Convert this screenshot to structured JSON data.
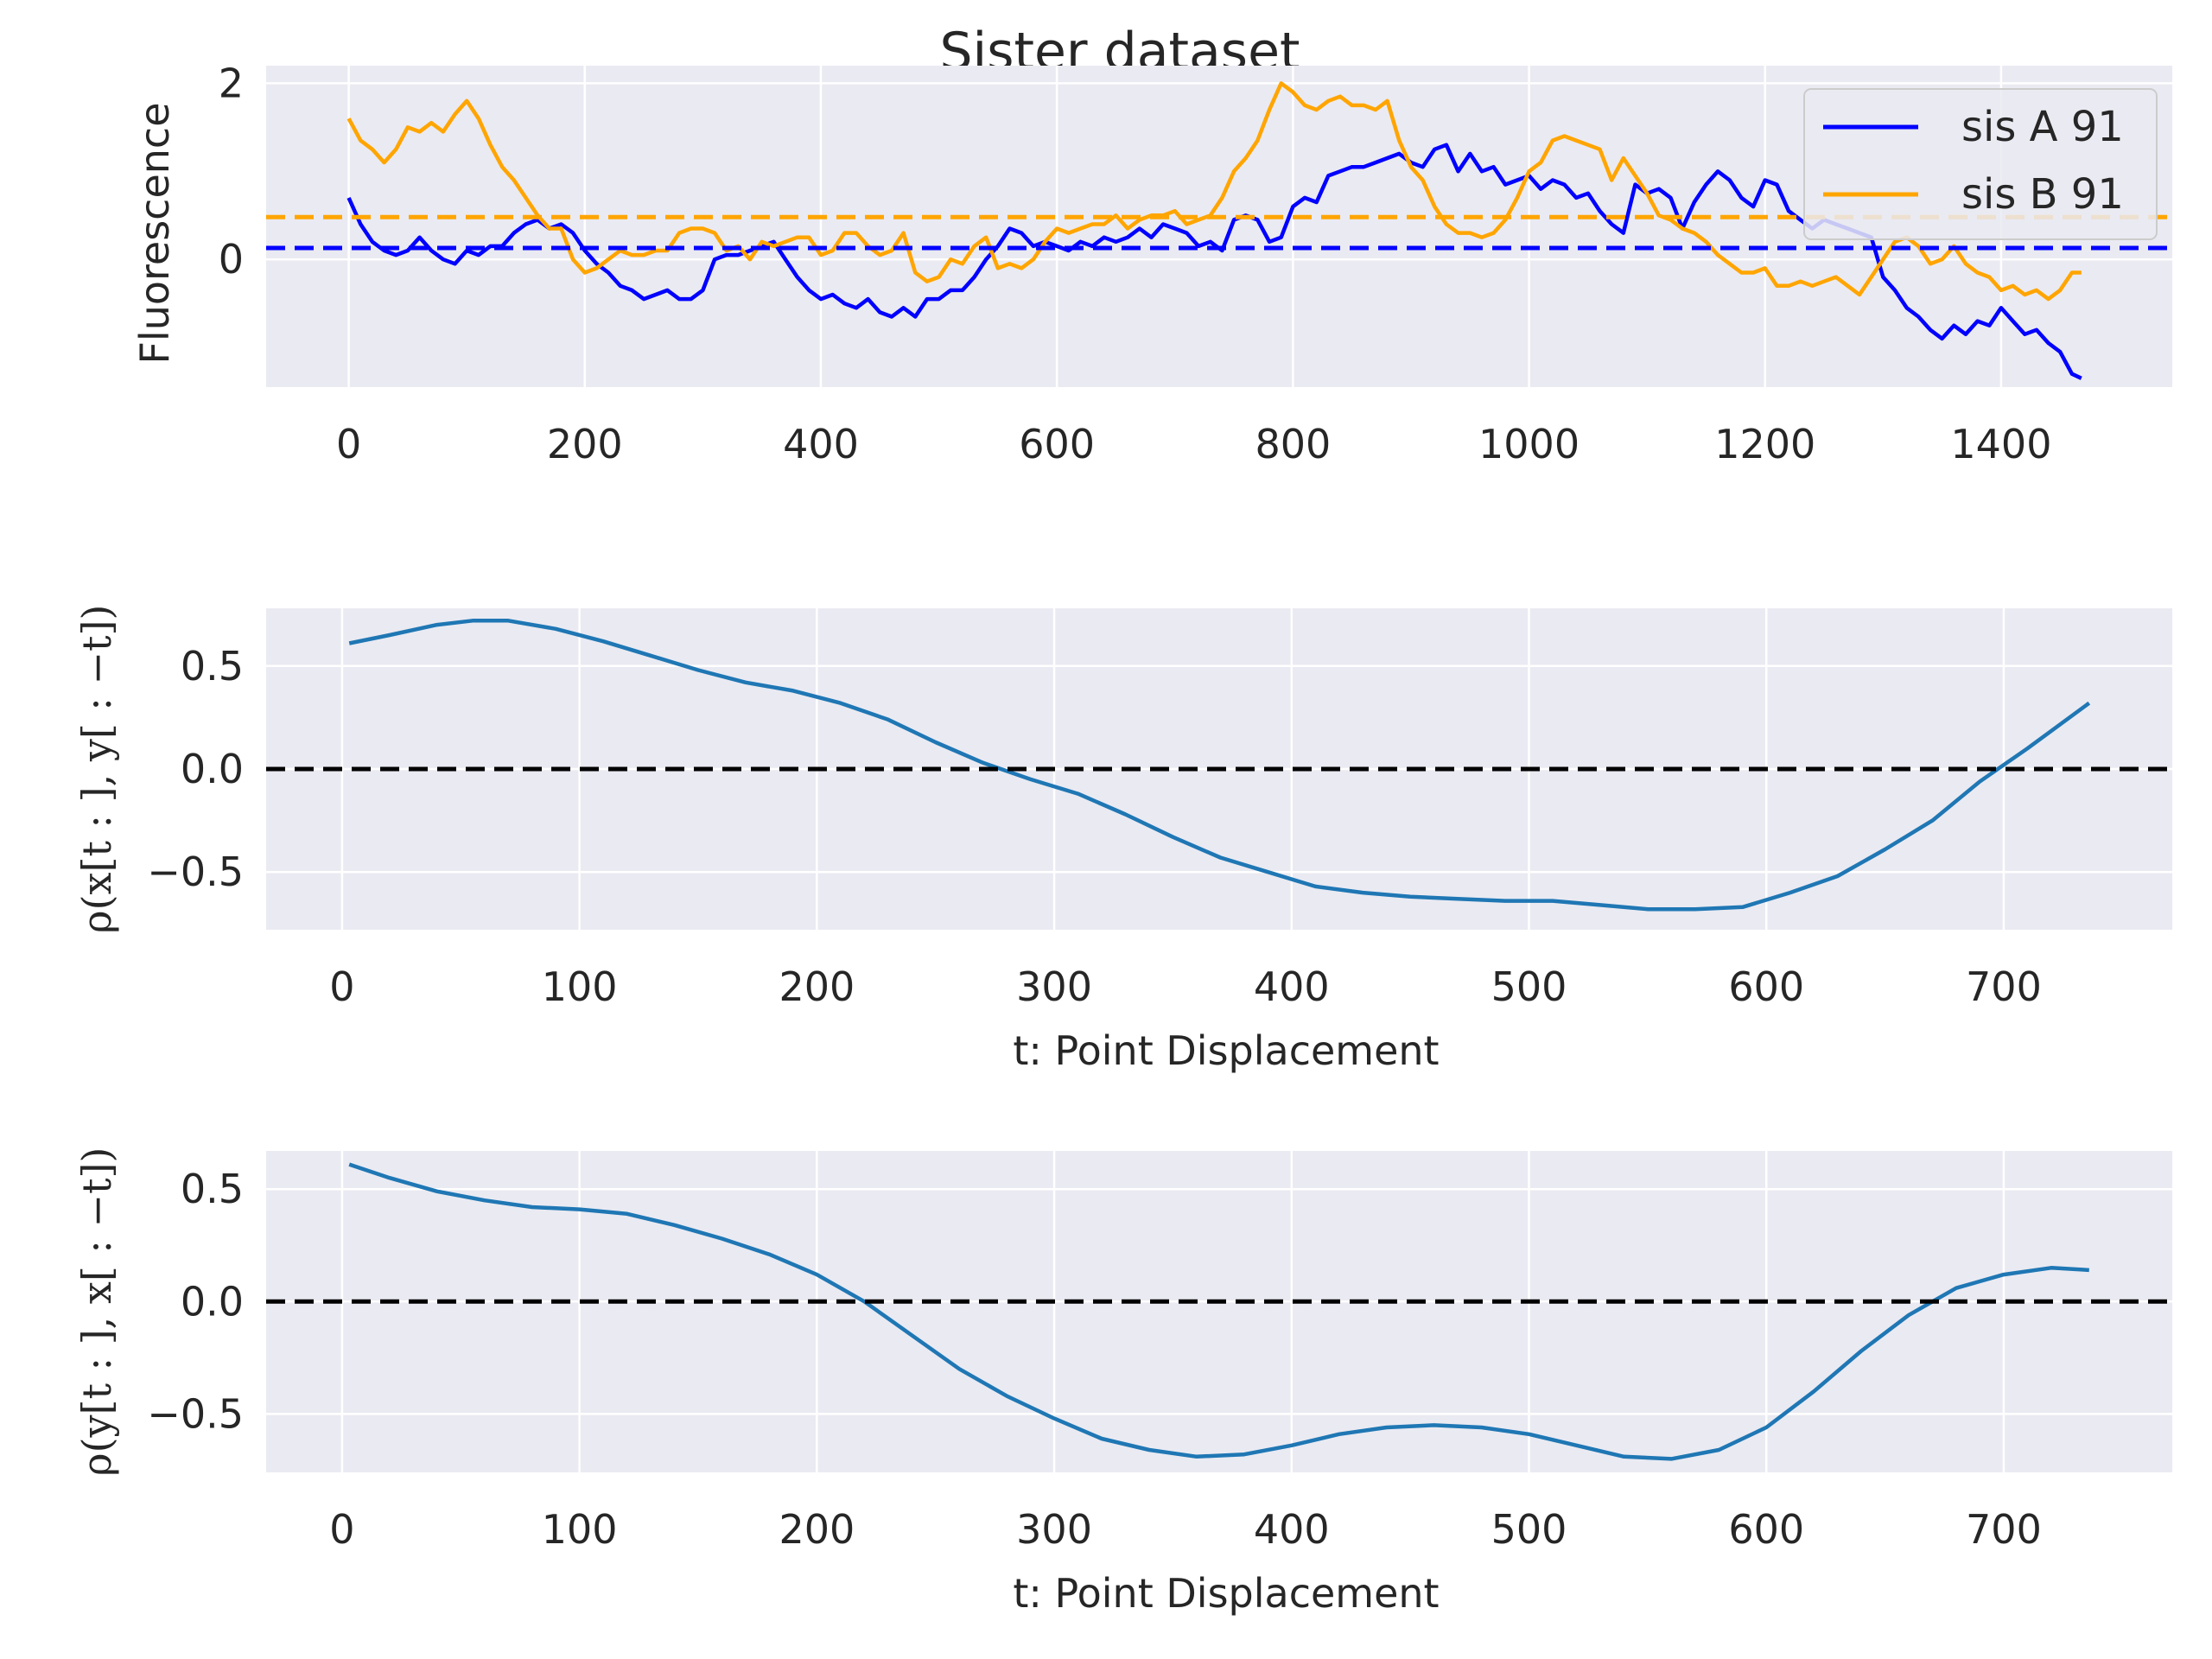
{
  "figure": {
    "title": "Sister dataset"
  },
  "chart_data": [
    {
      "type": "line",
      "id": "fluorescence",
      "title": "",
      "xlabel": "",
      "ylabel": "Fluorescence",
      "xlim": [
        -70,
        1545
      ],
      "ylim": [
        -1.45,
        2.2
      ],
      "xticks": [
        0,
        200,
        400,
        600,
        800,
        1000,
        1200,
        1400
      ],
      "xtick_labels": [
        "0",
        "200",
        "400",
        "600",
        "800",
        "1000",
        "1200",
        "1400"
      ],
      "yticks": [
        0,
        2
      ],
      "ytick_labels": [
        "0",
        "2"
      ],
      "grid": true,
      "legend": "top-right",
      "series": [
        {
          "name": "sis A 91",
          "color": "#0000ff",
          "style": "solid",
          "x": [
            0,
            10,
            20,
            30,
            40,
            50,
            60,
            70,
            80,
            90,
            100,
            110,
            120,
            130,
            140,
            150,
            160,
            170,
            180,
            190,
            200,
            210,
            220,
            230,
            240,
            250,
            260,
            270,
            280,
            290,
            300,
            310,
            320,
            330,
            340,
            350,
            360,
            370,
            380,
            390,
            400,
            410,
            420,
            430,
            440,
            450,
            460,
            470,
            480,
            490,
            500,
            510,
            520,
            530,
            540,
            550,
            560,
            570,
            580,
            590,
            600,
            610,
            620,
            630,
            640,
            650,
            660,
            670,
            680,
            690,
            700,
            710,
            720,
            730,
            740,
            750,
            760,
            770,
            780,
            790,
            800,
            810,
            820,
            830,
            840,
            850,
            860,
            870,
            880,
            890,
            900,
            910,
            920,
            930,
            940,
            950,
            960,
            970,
            980,
            990,
            1000,
            1010,
            1020,
            1030,
            1040,
            1050,
            1060,
            1070,
            1080,
            1090,
            1100,
            1110,
            1120,
            1130,
            1140,
            1150,
            1160,
            1170,
            1180,
            1190,
            1200,
            1210,
            1220,
            1230,
            1240,
            1250,
            1260,
            1270,
            1280,
            1290,
            1300,
            1310,
            1320,
            1330,
            1340,
            1350,
            1360,
            1370,
            1380,
            1390,
            1400,
            1410,
            1420,
            1430,
            1440,
            1450,
            1460,
            1468
          ],
          "values": [
            0.7,
            0.4,
            0.2,
            0.1,
            0.05,
            0.1,
            0.25,
            0.1,
            0.0,
            -0.05,
            0.1,
            0.05,
            0.15,
            0.15,
            0.3,
            0.4,
            0.45,
            0.35,
            0.4,
            0.3,
            0.1,
            -0.05,
            -0.15,
            -0.3,
            -0.35,
            -0.45,
            -0.4,
            -0.35,
            -0.45,
            -0.45,
            -0.35,
            0.0,
            0.05,
            0.05,
            0.1,
            0.15,
            0.2,
            0.0,
            -0.2,
            -0.35,
            -0.45,
            -0.4,
            -0.5,
            -0.55,
            -0.45,
            -0.6,
            -0.65,
            -0.55,
            -0.65,
            -0.45,
            -0.45,
            -0.35,
            -0.35,
            -0.2,
            0.0,
            0.15,
            0.35,
            0.3,
            0.15,
            0.2,
            0.15,
            0.1,
            0.2,
            0.15,
            0.25,
            0.2,
            0.25,
            0.35,
            0.25,
            0.4,
            0.35,
            0.3,
            0.15,
            0.2,
            0.1,
            0.45,
            0.5,
            0.45,
            0.2,
            0.25,
            0.6,
            0.7,
            0.65,
            0.95,
            1.0,
            1.05,
            1.05,
            1.1,
            1.15,
            1.2,
            1.1,
            1.05,
            1.25,
            1.3,
            1.0,
            1.2,
            1.0,
            1.05,
            0.85,
            0.9,
            0.95,
            0.8,
            0.9,
            0.85,
            0.7,
            0.75,
            0.55,
            0.4,
            0.3,
            0.85,
            0.75,
            0.8,
            0.7,
            0.35,
            0.65,
            0.85,
            1.0,
            0.9,
            0.7,
            0.6,
            0.9,
            0.85,
            0.55,
            0.45,
            0.35,
            0.45,
            0.4,
            0.35,
            0.3,
            0.25,
            -0.2,
            -0.35,
            -0.55,
            -0.65,
            -0.8,
            -0.9,
            -0.75,
            -0.85,
            -0.7,
            -0.75,
            -0.55,
            -0.7,
            -0.85,
            -0.8,
            -0.95,
            -1.05,
            -1.3,
            -1.35
          ]
        },
        {
          "name": "sis B 91",
          "color": "#ffa500",
          "style": "solid",
          "x": [
            0,
            10,
            20,
            30,
            40,
            50,
            60,
            70,
            80,
            90,
            100,
            110,
            120,
            130,
            140,
            150,
            160,
            170,
            180,
            190,
            200,
            210,
            220,
            230,
            240,
            250,
            260,
            270,
            280,
            290,
            300,
            310,
            320,
            330,
            340,
            350,
            360,
            370,
            380,
            390,
            400,
            410,
            420,
            430,
            440,
            450,
            460,
            470,
            480,
            490,
            500,
            510,
            520,
            530,
            540,
            550,
            560,
            570,
            580,
            590,
            600,
            610,
            620,
            630,
            640,
            650,
            660,
            670,
            680,
            690,
            700,
            710,
            720,
            730,
            740,
            750,
            760,
            770,
            780,
            790,
            800,
            810,
            820,
            830,
            840,
            850,
            860,
            870,
            880,
            890,
            900,
            910,
            920,
            930,
            940,
            950,
            960,
            970,
            980,
            990,
            1000,
            1010,
            1020,
            1030,
            1040,
            1050,
            1060,
            1070,
            1080,
            1090,
            1100,
            1110,
            1120,
            1130,
            1140,
            1150,
            1160,
            1170,
            1180,
            1190,
            1200,
            1210,
            1220,
            1230,
            1240,
            1250,
            1260,
            1270,
            1280,
            1290,
            1300,
            1310,
            1320,
            1330,
            1340,
            1350,
            1360,
            1370,
            1380,
            1390,
            1400,
            1410,
            1420,
            1430,
            1440,
            1450,
            1460,
            1468
          ],
          "values": [
            1.6,
            1.35,
            1.25,
            1.1,
            1.25,
            1.5,
            1.45,
            1.55,
            1.45,
            1.65,
            1.8,
            1.6,
            1.3,
            1.05,
            0.9,
            0.7,
            0.5,
            0.35,
            0.35,
            0.0,
            -0.15,
            -0.1,
            0.0,
            0.1,
            0.05,
            0.05,
            0.1,
            0.1,
            0.3,
            0.35,
            0.35,
            0.3,
            0.1,
            0.15,
            0.0,
            0.2,
            0.15,
            0.2,
            0.25,
            0.25,
            0.05,
            0.1,
            0.3,
            0.3,
            0.15,
            0.05,
            0.1,
            0.3,
            -0.15,
            -0.25,
            -0.2,
            0.0,
            -0.05,
            0.15,
            0.25,
            -0.1,
            -0.05,
            -0.1,
            0.0,
            0.2,
            0.35,
            0.3,
            0.35,
            0.4,
            0.4,
            0.5,
            0.35,
            0.45,
            0.5,
            0.5,
            0.55,
            0.4,
            0.45,
            0.5,
            0.7,
            1.0,
            1.15,
            1.35,
            1.7,
            2.0,
            1.9,
            1.75,
            1.7,
            1.8,
            1.85,
            1.75,
            1.75,
            1.7,
            1.8,
            1.35,
            1.05,
            0.9,
            0.6,
            0.4,
            0.3,
            0.3,
            0.25,
            0.3,
            0.45,
            0.7,
            1.0,
            1.1,
            1.35,
            1.4,
            1.35,
            1.3,
            1.25,
            0.9,
            1.15,
            0.95,
            0.75,
            0.5,
            0.45,
            0.35,
            0.3,
            0.2,
            0.05,
            -0.05,
            -0.15,
            -0.15,
            -0.1,
            -0.3,
            -0.3,
            -0.25,
            -0.3,
            -0.25,
            -0.2,
            -0.3,
            -0.4,
            -0.2,
            0.0,
            0.2,
            0.25,
            0.15,
            -0.05,
            0.0,
            0.15,
            -0.05,
            -0.15,
            -0.2,
            -0.35,
            -0.3,
            -0.4,
            -0.35,
            -0.45,
            -0.35,
            -0.15,
            -0.15
          ]
        },
        {
          "name": "",
          "color": "#0000ff",
          "style": "dashed",
          "x": [
            -70,
            1545
          ],
          "values": [
            0.13,
            0.13
          ]
        },
        {
          "name": "",
          "color": "#ffa500",
          "style": "dashed",
          "x": [
            -70,
            1545
          ],
          "values": [
            0.48,
            0.48
          ]
        }
      ]
    },
    {
      "type": "line",
      "id": "corr-xy",
      "title": "",
      "xlabel": "t: Point Displacement",
      "ylabel": "ρ(x[t : ], y[ : −t])",
      "xlim": [
        -32,
        771
      ],
      "ylim": [
        -0.78,
        0.78
      ],
      "xticks": [
        0,
        100,
        200,
        300,
        400,
        500,
        600,
        700
      ],
      "xtick_labels": [
        "0",
        "100",
        "200",
        "300",
        "400",
        "500",
        "600",
        "700"
      ],
      "yticks": [
        0.5,
        0.0,
        -0.5
      ],
      "ytick_labels": [
        "0.5",
        "0.0",
        "−0.5"
      ],
      "grid": true,
      "legend": "none",
      "series": [
        {
          "name": "",
          "color": "#1f77b4",
          "style": "solid",
          "x": [
            3,
            20,
            40,
            55,
            70,
            90,
            110,
            130,
            150,
            170,
            190,
            210,
            230,
            250,
            270,
            290,
            310,
            330,
            350,
            370,
            390,
            410,
            430,
            450,
            470,
            490,
            510,
            530,
            550,
            570,
            590,
            610,
            630,
            650,
            670,
            690,
            710,
            736
          ],
          "values": [
            0.61,
            0.65,
            0.7,
            0.72,
            0.72,
            0.68,
            0.62,
            0.55,
            0.48,
            0.42,
            0.38,
            0.32,
            0.24,
            0.13,
            0.03,
            -0.05,
            -0.12,
            -0.22,
            -0.33,
            -0.43,
            -0.5,
            -0.57,
            -0.6,
            -0.62,
            -0.63,
            -0.64,
            -0.64,
            -0.66,
            -0.68,
            -0.68,
            -0.67,
            -0.6,
            -0.52,
            -0.39,
            -0.25,
            -0.06,
            0.1,
            0.32
          ]
        },
        {
          "name": "",
          "color": "#000000",
          "style": "dashed",
          "x": [
            -32,
            771
          ],
          "values": [
            0,
            0
          ]
        }
      ]
    },
    {
      "type": "line",
      "id": "corr-yx",
      "title": "",
      "xlabel": "t: Point Displacement",
      "ylabel": "ρ(y[t : ], x[ : −t])",
      "xlim": [
        -32,
        771
      ],
      "ylim": [
        -0.76,
        0.67
      ],
      "xticks": [
        0,
        100,
        200,
        300,
        400,
        500,
        600,
        700
      ],
      "xtick_labels": [
        "0",
        "100",
        "200",
        "300",
        "400",
        "500",
        "600",
        "700"
      ],
      "yticks": [
        0.5,
        0.0,
        -0.5
      ],
      "ytick_labels": [
        "0.5",
        "0.0",
        "−0.5"
      ],
      "grid": true,
      "legend": "none",
      "series": [
        {
          "name": "",
          "color": "#1f77b4",
          "style": "solid",
          "x": [
            3,
            20,
            40,
            60,
            80,
            100,
            120,
            140,
            160,
            180,
            200,
            220,
            240,
            260,
            280,
            300,
            320,
            340,
            360,
            380,
            400,
            420,
            440,
            460,
            480,
            500,
            520,
            540,
            560,
            580,
            600,
            620,
            640,
            660,
            680,
            700,
            720,
            736
          ],
          "values": [
            0.61,
            0.55,
            0.49,
            0.45,
            0.42,
            0.41,
            0.39,
            0.34,
            0.28,
            0.21,
            0.12,
            0.0,
            -0.15,
            -0.3,
            -0.42,
            -0.52,
            -0.61,
            -0.66,
            -0.69,
            -0.68,
            -0.64,
            -0.59,
            -0.56,
            -0.55,
            -0.56,
            -0.59,
            -0.64,
            -0.69,
            -0.7,
            -0.66,
            -0.56,
            -0.4,
            -0.22,
            -0.06,
            0.06,
            0.12,
            0.15,
            0.14
          ]
        },
        {
          "name": "",
          "color": "#000000",
          "style": "dashed",
          "x": [
            -32,
            771
          ],
          "values": [
            0,
            0
          ]
        }
      ]
    }
  ]
}
